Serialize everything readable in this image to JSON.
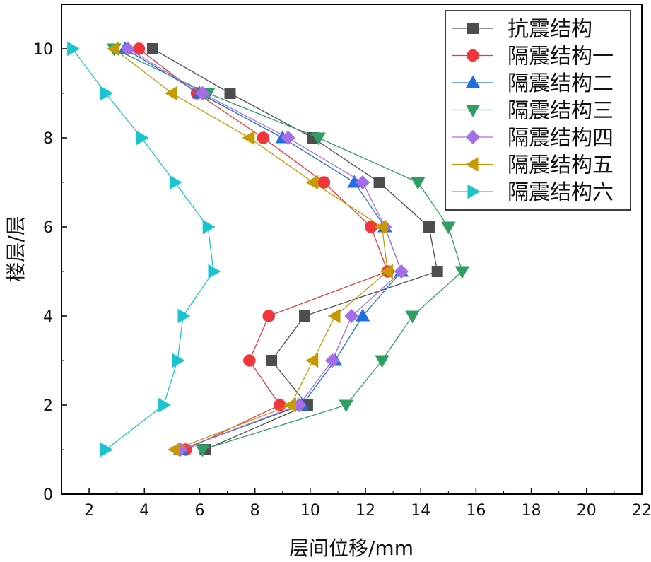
{
  "chart_data": {
    "type": "line",
    "xlabel": "层间位移/mm",
    "ylabel": "楼层/层",
    "xlim": [
      1,
      22
    ],
    "ylim": [
      0,
      11
    ],
    "xticks": [
      2,
      4,
      6,
      8,
      10,
      12,
      14,
      16,
      18,
      20,
      22
    ],
    "yticks": [
      0,
      2,
      4,
      6,
      8,
      10
    ],
    "y": [
      1,
      2,
      3,
      4,
      5,
      6,
      7,
      8,
      9,
      10
    ],
    "legend_position": "top-right",
    "series": [
      {
        "name": "抗震结构",
        "color": "#4d4d4d",
        "marker": "square",
        "x": [
          6.2,
          9.9,
          8.6,
          9.8,
          14.6,
          14.3,
          12.5,
          10.1,
          7.1,
          4.3
        ]
      },
      {
        "name": "隔震结构一",
        "color": "#f0363a",
        "marker": "circle",
        "x": [
          5.5,
          8.9,
          7.8,
          8.5,
          12.8,
          12.2,
          10.5,
          8.3,
          5.9,
          3.8
        ]
      },
      {
        "name": "隔震结构二",
        "color": "#1e6fe0",
        "marker": "triangle-up",
        "x": [
          5.3,
          9.7,
          10.9,
          11.9,
          13.3,
          12.7,
          11.6,
          9.0,
          6.0,
          3.3
        ]
      },
      {
        "name": "隔震结构三",
        "color": "#2f9e64",
        "marker": "triangle-down",
        "x": [
          6.1,
          11.3,
          12.6,
          13.7,
          15.5,
          15.0,
          13.9,
          10.3,
          6.3,
          2.9
        ]
      },
      {
        "name": "隔震结构四",
        "color": "#a66ee6",
        "marker": "diamond",
        "x": [
          5.3,
          9.6,
          10.8,
          11.5,
          13.3,
          12.7,
          11.9,
          9.2,
          6.1,
          3.4
        ]
      },
      {
        "name": "隔震结构五",
        "color": "#c79a05",
        "marker": "triangle-left",
        "x": [
          5.1,
          9.3,
          10.1,
          10.9,
          12.8,
          12.6,
          10.1,
          7.8,
          5.0,
          2.9
        ]
      },
      {
        "name": "隔震结构六",
        "color": "#19c4cf",
        "marker": "triangle-right",
        "x": [
          2.6,
          4.7,
          5.2,
          5.4,
          6.5,
          6.3,
          5.1,
          3.9,
          2.6,
          1.4
        ]
      }
    ]
  }
}
